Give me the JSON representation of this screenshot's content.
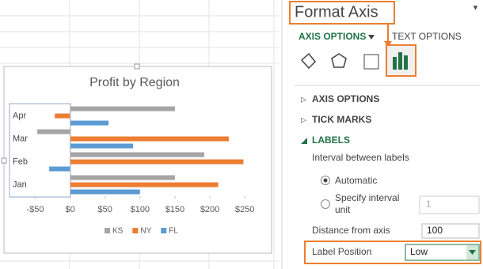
{
  "chart_data": {
    "type": "hbar",
    "title": "Profit by Region",
    "categories": [
      "Jan",
      "Feb",
      "Mar",
      "Apr"
    ],
    "series": [
      {
        "name": "KS",
        "color": "#a5a5a5",
        "values": [
          150,
          192,
          -47,
          150
        ]
      },
      {
        "name": "NY",
        "color": "#ed7d31",
        "values": [
          212,
          248,
          227,
          -22
        ]
      },
      {
        "name": "FL",
        "color": "#5b9bd5",
        "values": [
          100,
          -30,
          90,
          55
        ]
      }
    ],
    "xlim": [
      -80,
      260
    ],
    "xticks": [
      {
        "value": -50,
        "label": "-$50"
      },
      {
        "value": 0,
        "label": "$0"
      },
      {
        "value": 50,
        "label": "$50"
      },
      {
        "value": 100,
        "label": "$100"
      },
      {
        "value": 150,
        "label": "$150"
      },
      {
        "value": 200,
        "label": "$200"
      },
      {
        "value": 250,
        "label": "$250"
      }
    ],
    "legend": "bottom"
  },
  "pane": {
    "title": "Format Axis",
    "tabs": [
      "AXIS OPTIONS",
      "TEXT OPTIONS"
    ],
    "sections": [
      "AXIS OPTIONS",
      "TICK MARKS",
      "LABELS"
    ],
    "interval_heading": "Interval between labels",
    "radio_automatic": "Automatic",
    "radio_specify": [
      "Specify interval",
      "unit"
    ],
    "specify_value": "1",
    "distance_label": "Distance from axis",
    "distance_value": "100",
    "position_label": "Label Position",
    "position_value": "Low"
  }
}
